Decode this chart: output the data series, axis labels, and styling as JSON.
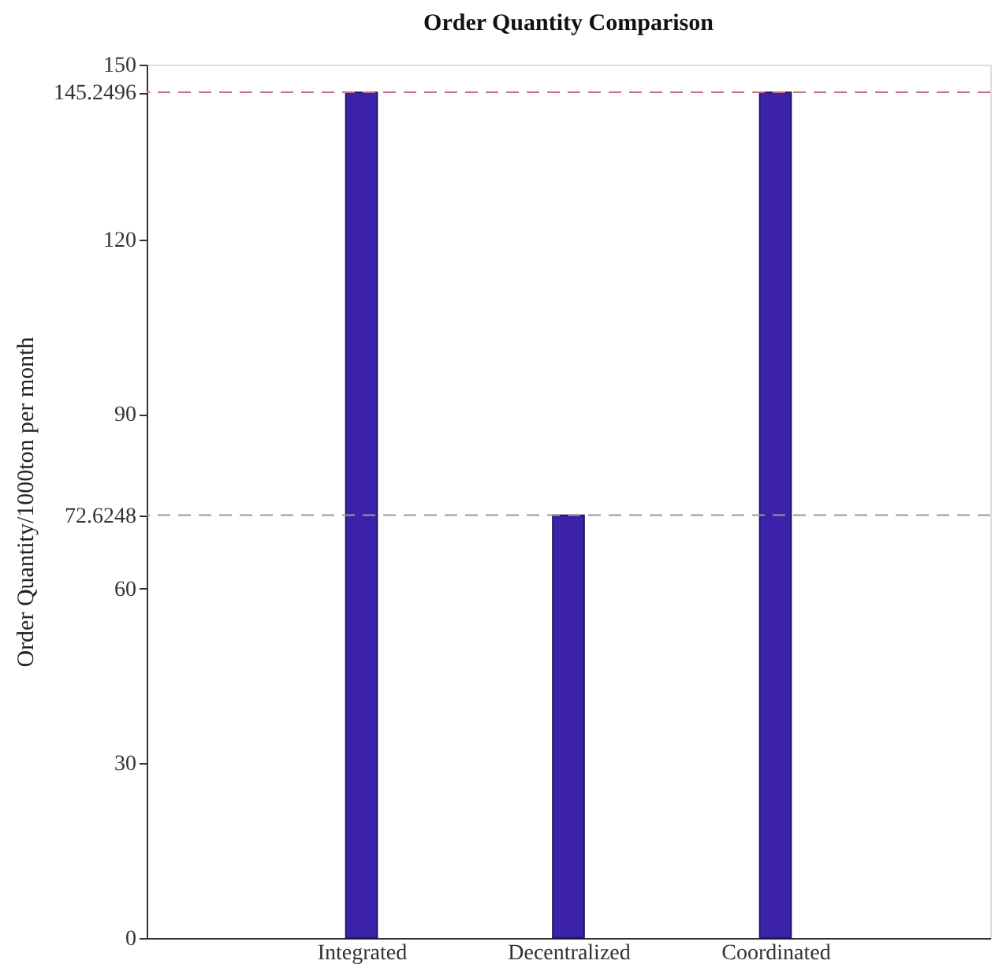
{
  "chart_data": {
    "type": "bar",
    "title": "Order Quantity Comparison",
    "ylabel": "Order Quantity/1000ton per month",
    "categories": [
      "Integrated",
      "Decentralized",
      "Coordinated"
    ],
    "values": [
      145.2496,
      72.6248,
      145.2496
    ],
    "color": "#3b22a8",
    "ylim": [
      0,
      150
    ],
    "yticks": [
      0,
      30,
      60,
      72.6248,
      90,
      120,
      145.2496,
      150
    ],
    "grid": false,
    "ref_lines": [
      {
        "axis": "y",
        "value": 145.2496,
        "color": "#c8708a",
        "line_style": "dashed"
      },
      {
        "axis": "y",
        "value": 72.6248,
        "color": "#999999",
        "line_style": "dashed"
      }
    ]
  }
}
